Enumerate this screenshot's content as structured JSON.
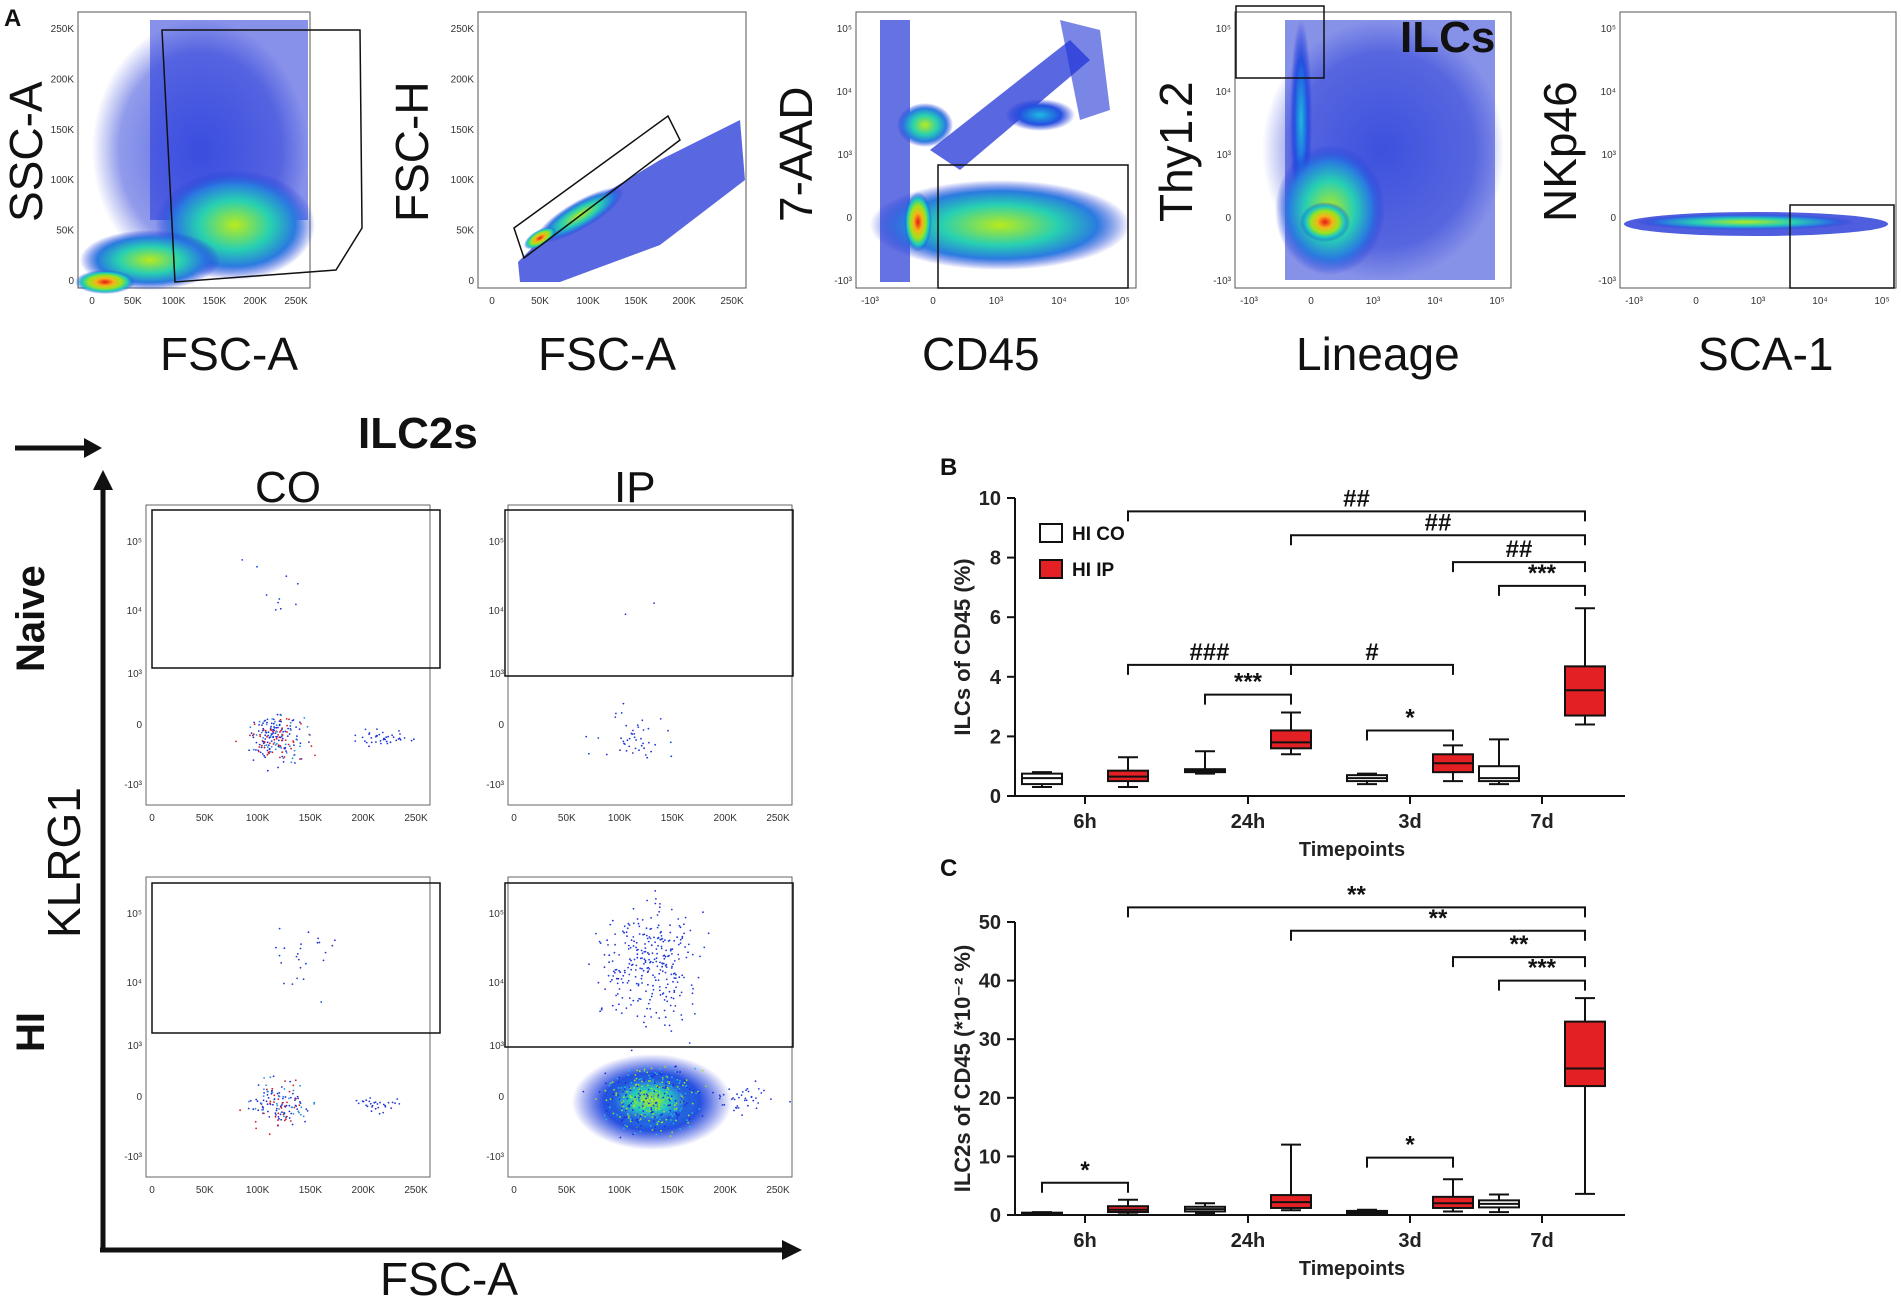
{
  "panel_letters": [
    "A",
    "B",
    "C"
  ],
  "flow_plots": [
    {
      "id": "p1",
      "xlabel": "FSC-A",
      "ylabel": "SSC-A",
      "x_ticks": [
        "0",
        "50K",
        "100K",
        "150K",
        "200K",
        "250K"
      ],
      "y_ticks": [
        "0",
        "50K",
        "100K",
        "150K",
        "200K",
        "250K"
      ],
      "overlay": ""
    },
    {
      "id": "p2",
      "xlabel": "FSC-A",
      "ylabel": "FSC-H",
      "x_ticks": [
        "0",
        "50K",
        "100K",
        "150K",
        "200K",
        "250K"
      ],
      "y_ticks": [
        "0",
        "50K",
        "100K",
        "150K",
        "200K",
        "250K"
      ],
      "overlay": ""
    },
    {
      "id": "p3",
      "xlabel": "CD45",
      "ylabel": "7-AAD",
      "x_ticks": [
        "-10³",
        "0",
        "10³",
        "10⁴",
        "10⁵"
      ],
      "y_ticks": [
        "-10³",
        "0",
        "10³",
        "10⁴",
        "10⁵"
      ],
      "overlay": ""
    },
    {
      "id": "p4",
      "xlabel": "Lineage",
      "ylabel": "Thy1.2",
      "x_ticks": [
        "-10³",
        "0",
        "10³",
        "10⁴",
        "10⁵"
      ],
      "y_ticks": [
        "-10³",
        "0",
        "10³",
        "10⁴",
        "10⁵"
      ],
      "overlay": "ILCs"
    },
    {
      "id": "p5",
      "xlabel": "SCA-1",
      "ylabel": "NKp46",
      "x_ticks": [
        "-10³",
        "0",
        "10³",
        "10⁴",
        "10⁵"
      ],
      "y_ticks": [
        "-10³",
        "0",
        "10³",
        "10⁴",
        "10⁵"
      ],
      "overlay": ""
    }
  ],
  "ilc2": {
    "title": "ILC2s",
    "col_labels": [
      "CO",
      "IP"
    ],
    "row_labels": [
      "Naive",
      "HI"
    ],
    "y_axis_label": "KLRG1",
    "x_axis_label": "FSC-A",
    "x_ticks": [
      "0",
      "50K",
      "100K",
      "150K",
      "200K",
      "250K"
    ],
    "y_ticks": [
      "-10³",
      "0",
      "10³",
      "10⁴",
      "10⁵"
    ]
  },
  "chart_data": [
    {
      "type": "boxplot",
      "panel": "B",
      "ylabel": "ILCs of CD45 (%)",
      "xlabel": "Timepoints",
      "ylim": [
        0,
        10
      ],
      "y_ticks": [
        0,
        2,
        4,
        6,
        8,
        10
      ],
      "categories": [
        "6h",
        "24h",
        "3d",
        "7d"
      ],
      "legend": [
        "HI CO",
        "HI IP"
      ],
      "colors": {
        "HI CO": "#ffffff",
        "HI IP": "#e32124"
      },
      "series": [
        {
          "name": "HI CO",
          "boxes": [
            {
              "min": 0.3,
              "q1": 0.4,
              "median": 0.6,
              "q3": 0.75,
              "max": 0.8
            },
            {
              "min": 0.75,
              "q1": 0.8,
              "median": 0.85,
              "q3": 0.9,
              "max": 1.5
            },
            {
              "min": 0.4,
              "q1": 0.5,
              "median": 0.6,
              "q3": 0.7,
              "max": 0.75
            },
            {
              "min": 0.4,
              "q1": 0.5,
              "median": 0.6,
              "q3": 1.0,
              "max": 1.9
            }
          ]
        },
        {
          "name": "HI IP",
          "boxes": [
            {
              "min": 0.3,
              "q1": 0.5,
              "median": 0.65,
              "q3": 0.85,
              "max": 1.3
            },
            {
              "min": 1.4,
              "q1": 1.6,
              "median": 1.8,
              "q3": 2.2,
              "max": 2.8
            },
            {
              "min": 0.5,
              "q1": 0.8,
              "median": 1.1,
              "q3": 1.4,
              "max": 1.7
            },
            {
              "min": 2.4,
              "q1": 2.7,
              "median": 3.55,
              "q3": 4.35,
              "max": 6.3
            }
          ]
        }
      ],
      "brackets": [
        {
          "from": "6h IP",
          "to": "7d IP",
          "y": 9.55,
          "label": "##"
        },
        {
          "from": "24h IP",
          "to": "7d IP",
          "y": 8.75,
          "label": "##"
        },
        {
          "from": "3d IP",
          "to": "7d IP",
          "y": 7.85,
          "label": "##"
        },
        {
          "from": "7d CO",
          "to": "7d IP",
          "y": 7.05,
          "label": "***"
        },
        {
          "from": "6h IP",
          "to": "24h IP",
          "y": 4.4,
          "label": "###"
        },
        {
          "from": "24h IP",
          "to": "3d IP",
          "y": 4.4,
          "label": "#"
        },
        {
          "from": "24h CO",
          "to": "24h IP",
          "y": 3.4,
          "label": "***"
        },
        {
          "from": "3d CO",
          "to": "3d IP",
          "y": 2.2,
          "label": "*"
        }
      ]
    },
    {
      "type": "boxplot",
      "panel": "C",
      "ylabel": "ILC2s of CD45 (*10⁻² %)",
      "xlabel": "Timepoints",
      "ylim": [
        0,
        50
      ],
      "y_ticks": [
        0,
        10,
        20,
        30,
        40,
        50
      ],
      "categories": [
        "6h",
        "24h",
        "3d",
        "7d"
      ],
      "legend": [],
      "colors": {
        "HI CO": "#ffffff",
        "HI IP": "#e32124"
      },
      "series": [
        {
          "name": "HI CO",
          "boxes": [
            {
              "min": 0.1,
              "q1": 0.2,
              "median": 0.3,
              "q3": 0.4,
              "max": 0.5
            },
            {
              "min": 0.3,
              "q1": 0.6,
              "median": 1.0,
              "q3": 1.4,
              "max": 2.0
            },
            {
              "min": 0.1,
              "q1": 0.3,
              "median": 0.5,
              "q3": 0.7,
              "max": 0.9
            },
            {
              "min": 0.5,
              "q1": 1.3,
              "median": 1.9,
              "q3": 2.5,
              "max": 3.5
            }
          ]
        },
        {
          "name": "HI IP",
          "boxes": [
            {
              "min": 0.1,
              "q1": 0.5,
              "median": 0.9,
              "q3": 1.5,
              "max": 2.6
            },
            {
              "min": 0.8,
              "q1": 1.2,
              "median": 2.2,
              "q3": 3.4,
              "max": 12.0
            },
            {
              "min": 0.6,
              "q1": 1.2,
              "median": 2.0,
              "q3": 3.1,
              "max": 6.1
            },
            {
              "min": 3.6,
              "q1": 22.0,
              "median": 25.0,
              "q3": 33.0,
              "max": 37.0
            }
          ]
        }
      ],
      "brackets": [
        {
          "from": "6h IP",
          "to": "7d IP",
          "y": 52.5,
          "label": "**"
        },
        {
          "from": "24h IP",
          "to": "7d IP",
          "y": 48.5,
          "label": "**"
        },
        {
          "from": "3d IP",
          "to": "7d IP",
          "y": 44.0,
          "label": "**"
        },
        {
          "from": "7d CO",
          "to": "7d IP",
          "y": 40.0,
          "label": "***"
        },
        {
          "from": "6h CO",
          "to": "6h IP",
          "y": 5.5,
          "label": "*"
        },
        {
          "from": "3d CO",
          "to": "3d IP",
          "y": 9.8,
          "label": "*"
        }
      ]
    }
  ]
}
